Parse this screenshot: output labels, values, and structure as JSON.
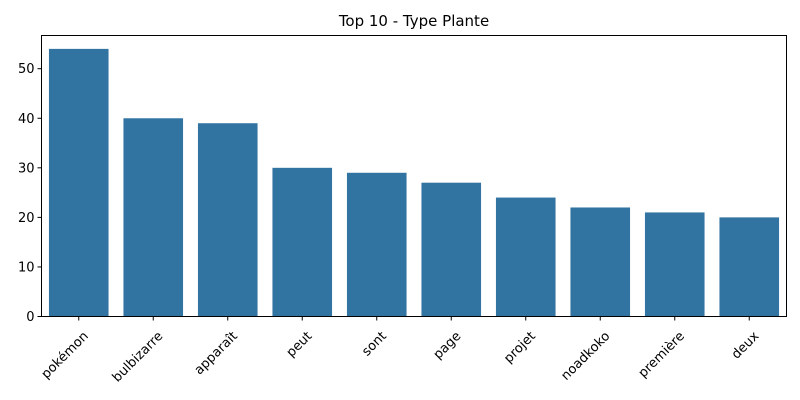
{
  "chart_data": {
    "type": "bar",
    "title": "Top 10 - Type Plante",
    "xlabel": "",
    "ylabel": "",
    "categories": [
      "pokémon",
      "bulbizarre",
      "apparaît",
      "peut",
      "sont",
      "page",
      "projet",
      "noadkoko",
      "première",
      "deux"
    ],
    "values": [
      54,
      40,
      39,
      30,
      29,
      27,
      24,
      22,
      21,
      20
    ],
    "ylim": [
      0,
      56.7
    ],
    "yticks": [
      0,
      10,
      20,
      30,
      40,
      50
    ],
    "bar_color": "#3274a1",
    "grid": false,
    "legend": "none"
  }
}
